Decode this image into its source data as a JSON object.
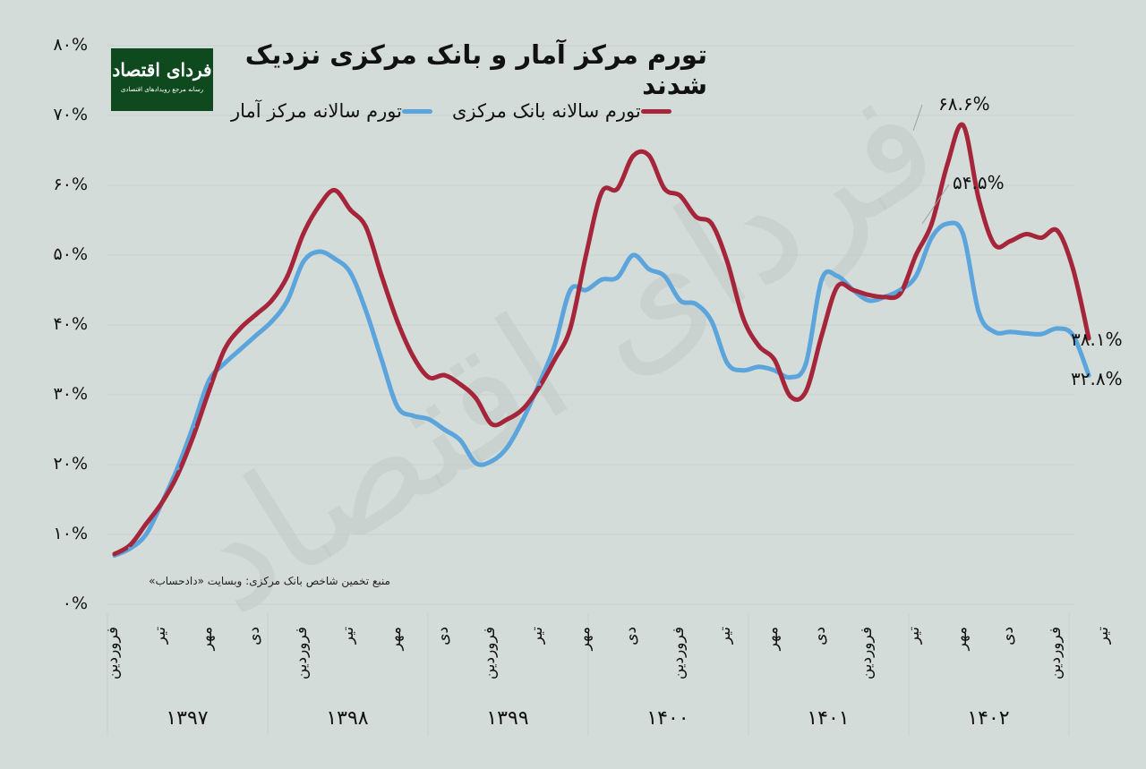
{
  "header": {
    "title": "تورم مرکز آمار و بانک مرکزی نزدیک شدند",
    "logo_text": "فردای اقتصاد",
    "logo_tagline": "رسانه مرجع رویدادهای اقتصادی"
  },
  "source_note": "منبع تخمین شاخص بانک مرکزی: وبسایت «دادحساب»",
  "colors": {
    "cbi": "#a5263a",
    "sci": "#5ba4dc",
    "background": "#d4dcd9",
    "logo_bg": "#0f4a1f"
  },
  "chart_data": {
    "type": "line",
    "ylim": [
      0,
      80
    ],
    "yticks": [
      "۰%",
      "۱۰%",
      "۲۰%",
      "۳۰%",
      "۴۰%",
      "۵۰%",
      "۶۰%",
      "۷۰%",
      "۸۰%"
    ],
    "month_labels": [
      "فروردین",
      "تیر",
      "مهر",
      "دی"
    ],
    "years": [
      "۱۳۹۷",
      "۱۳۹۸",
      "۱۳۹۹",
      "۱۴۰۰",
      "۱۴۰۱",
      "۱۴۰۲"
    ],
    "series": [
      {
        "name": "تورم سالانه بانک مرکزی",
        "color": "#a5263a",
        "values": [
          7.2,
          8.5,
          11.5,
          14.5,
          18.5,
          24,
          30.5,
          36.5,
          39.5,
          41.5,
          43.5,
          47,
          53,
          57,
          59.3,
          56.5,
          54,
          47,
          40.5,
          35.5,
          32.5,
          32.8,
          31.5,
          29.5,
          25.8,
          26.5,
          28,
          31,
          35,
          39.5,
          50,
          59,
          59.5,
          64.2,
          64.3,
          59.5,
          58.5,
          55.5,
          54.5,
          49,
          41,
          37,
          35,
          29.8,
          30.5,
          38.5,
          45.5,
          45,
          44.3,
          44,
          44.5,
          50,
          54.5,
          63,
          68.6,
          58,
          51.5,
          52,
          53,
          52.5,
          53.5,
          48,
          38.1
        ]
      },
      {
        "name": "تورم سالانه مرکز آمار",
        "color": "#5ba4dc",
        "values": [
          7,
          8,
          10,
          14.5,
          19.5,
          25.5,
          32,
          34.5,
          36.5,
          38.5,
          40.5,
          43.5,
          49,
          50.5,
          49.5,
          47.5,
          42,
          35,
          28.3,
          27,
          26.5,
          25,
          23.5,
          20.2,
          20.5,
          22.5,
          26.5,
          31.5,
          37,
          45,
          45,
          46.5,
          46.8,
          50,
          48,
          47,
          43.5,
          43,
          40.5,
          34.5,
          33.5,
          34,
          33.5,
          32.5,
          34.5,
          46.5,
          47,
          45,
          43.5,
          44,
          45,
          47,
          52.5,
          54.5,
          53,
          41.8,
          39,
          39,
          38.8,
          38.7,
          39.5,
          38.5,
          32.8
        ]
      }
    ],
    "annotations": [
      {
        "text": "۶۸.۶%",
        "series": 0,
        "point": 54
      },
      {
        "text": "۵۴.۵%",
        "series": 1,
        "point": 53
      },
      {
        "text": "۳۸.۱%",
        "series": 0,
        "point": 62
      },
      {
        "text": "۳۲.۸%",
        "series": 1,
        "point": 62
      }
    ]
  }
}
